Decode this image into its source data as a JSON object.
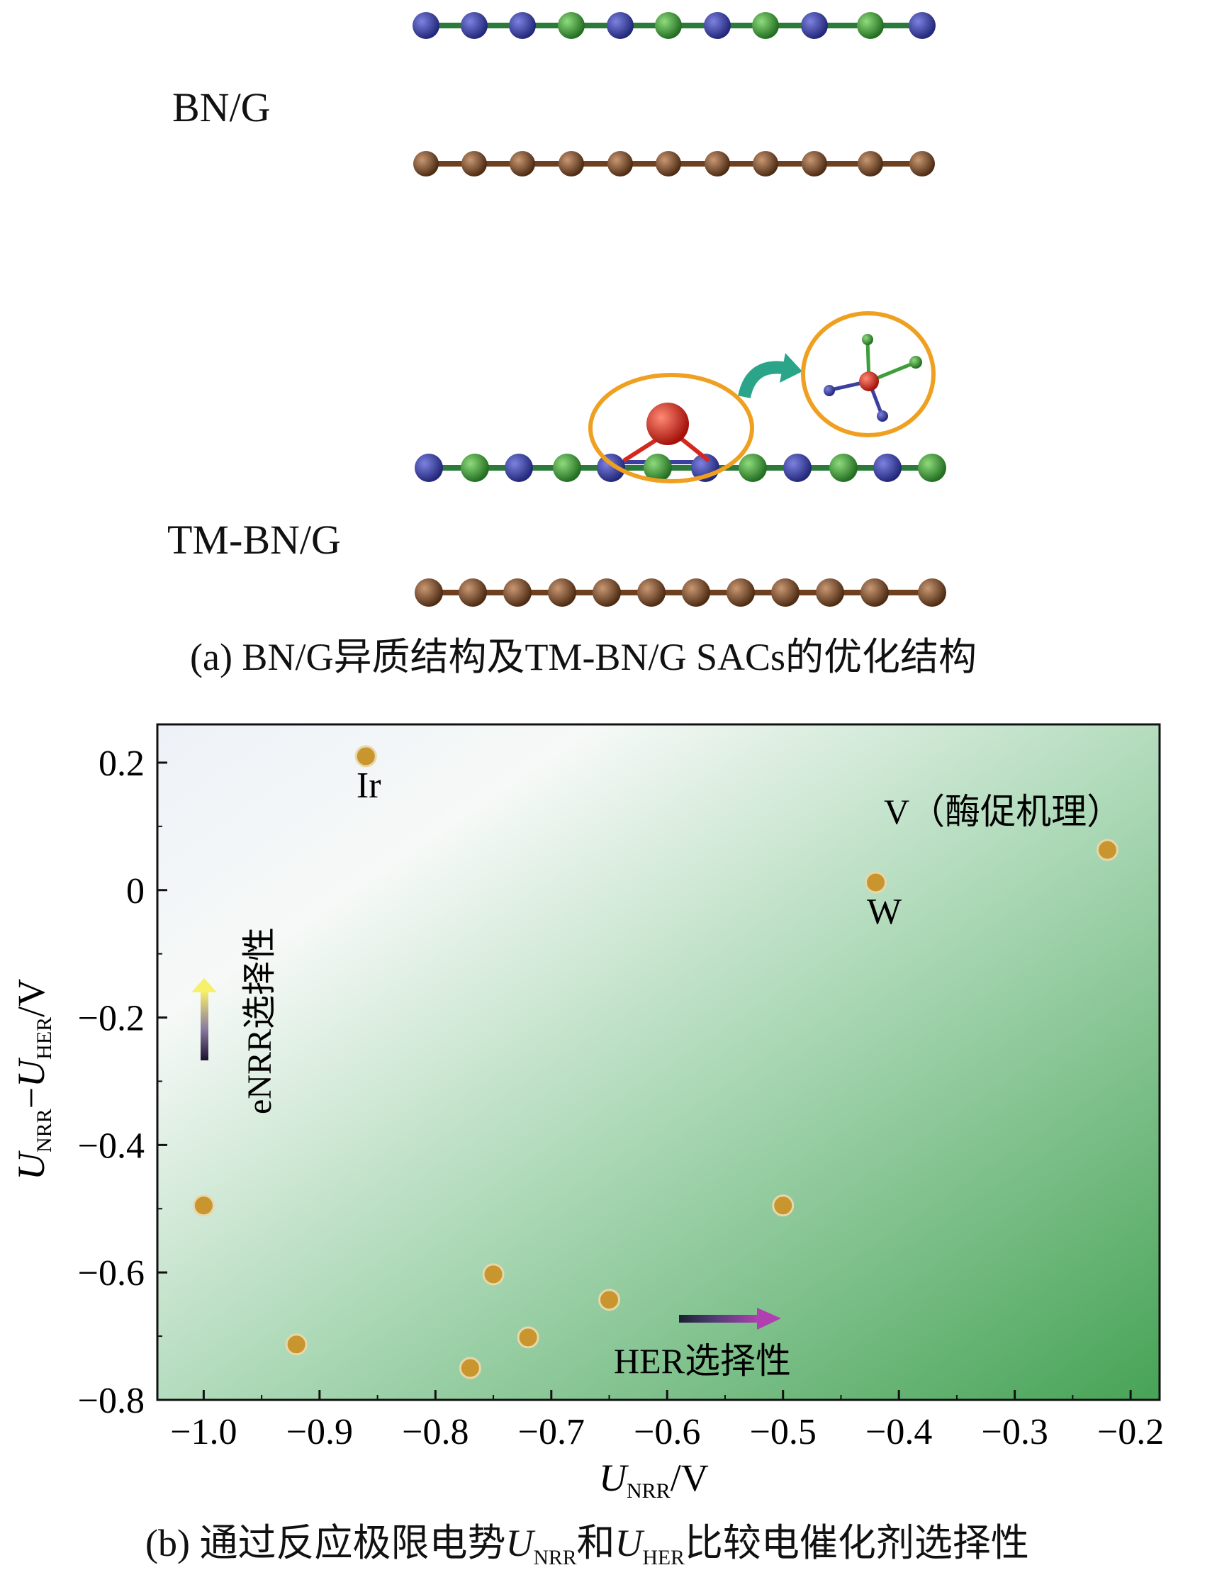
{
  "panel_a": {
    "label_bn_g": "BN/G",
    "label_tm_bn_g": "TM-BN/G",
    "caption": "(a) BN/G异质结构及TM-BN/G SACs的优化结构",
    "colors": {
      "nitrogen": "#3a3fa0",
      "boron": "#3e9e3a",
      "carbon": "#7a4b2a",
      "metal": "#d4281f",
      "highlight": "#f0a020",
      "arrow": "#2aa58a"
    }
  },
  "panel_b": {
    "caption_prefix": "(b) 通过反应极限电势",
    "caption_u1": "U",
    "caption_u1_sub": "NRR",
    "caption_mid": "和",
    "caption_u2": "U",
    "caption_u2_sub": "HER",
    "caption_suffix": "比较电催化剂选择性",
    "arrow_y_label": "eNRR选择性",
    "arrow_x_label": "HER选择性",
    "v_annotation": "V（酶促机理）"
  },
  "chart_data": {
    "type": "scatter",
    "xlabel_main": "U",
    "xlabel_sub": "NRR",
    "xlabel_unit": "/V",
    "ylabel_main1": "U",
    "ylabel_sub1": "NRR",
    "ylabel_minus": "−",
    "ylabel_main2": "U",
    "ylabel_sub2": "HER",
    "ylabel_unit": "/V",
    "xlim": [
      -1.04,
      -0.175
    ],
    "ylim": [
      -0.8,
      0.26
    ],
    "x_ticks": [
      -1.0,
      -0.9,
      -0.8,
      -0.7,
      -0.6,
      -0.5,
      -0.4,
      -0.3,
      -0.2
    ],
    "x_tick_labels": [
      "−1.0",
      "−0.9",
      "−0.8",
      "−0.7",
      "−0.6",
      "−0.5",
      "−0.4",
      "−0.3",
      "−0.2"
    ],
    "y_ticks": [
      0.2,
      0,
      -0.2,
      -0.4,
      -0.6,
      -0.8
    ],
    "y_tick_labels": [
      "0.2",
      "0",
      "−0.2",
      "−0.4",
      "−0.6",
      "−0.8"
    ],
    "points": [
      {
        "x": -0.86,
        "y": 0.21,
        "label": "Ir"
      },
      {
        "x": -0.42,
        "y": 0.012,
        "label": "W"
      },
      {
        "x": -0.22,
        "y": 0.063,
        "label": ""
      },
      {
        "x": -1.0,
        "y": -0.495,
        "label": ""
      },
      {
        "x": -0.5,
        "y": -0.495,
        "label": ""
      },
      {
        "x": -0.75,
        "y": -0.603,
        "label": ""
      },
      {
        "x": -0.65,
        "y": -0.643,
        "label": ""
      },
      {
        "x": -0.72,
        "y": -0.702,
        "label": ""
      },
      {
        "x": -0.92,
        "y": -0.713,
        "label": ""
      },
      {
        "x": -0.77,
        "y": -0.75,
        "label": ""
      }
    ],
    "colors": {
      "point": "#c9952e",
      "bg_light": "#f4f7f8",
      "bg_dark": "#4fa85a"
    }
  }
}
